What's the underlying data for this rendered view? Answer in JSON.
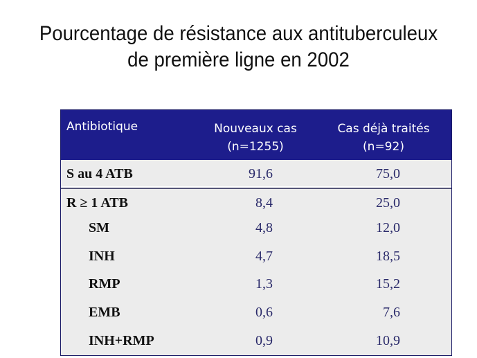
{
  "title": {
    "line1": "Pourcentage de résistance aux antituberculeux",
    "line2": "de première ligne en 2002"
  },
  "table": {
    "headers": {
      "col1": "Antibiotique",
      "col2_line1": "Nouveaux cas",
      "col2_line2": "(n=1255)",
      "col3_line1": "Cas déjà traités",
      "col3_line2": "(n=92)"
    },
    "rows": [
      {
        "label": "S au 4 ATB",
        "new_cases": "91,6",
        "treated_cases": "75,0"
      },
      {
        "label": "R ≥ 1 ATB",
        "new_cases": "8,4",
        "treated_cases": "25,0"
      },
      {
        "label": "SM",
        "new_cases": "4,8",
        "treated_cases": "12,0"
      },
      {
        "label": "INH",
        "new_cases": "4,7",
        "treated_cases": "18,5"
      },
      {
        "label": "RMP",
        "new_cases": "1,3",
        "treated_cases": "15,2"
      },
      {
        "label": "EMB",
        "new_cases": "0,6",
        "treated_cases": "7,6"
      },
      {
        "label": "INH+RMP",
        "new_cases": "0,9",
        "treated_cases": "10,9"
      }
    ]
  },
  "colors": {
    "header_bg": "#1d1d8c",
    "table_bg": "#ececec",
    "value_text": "#2a2a6a"
  }
}
